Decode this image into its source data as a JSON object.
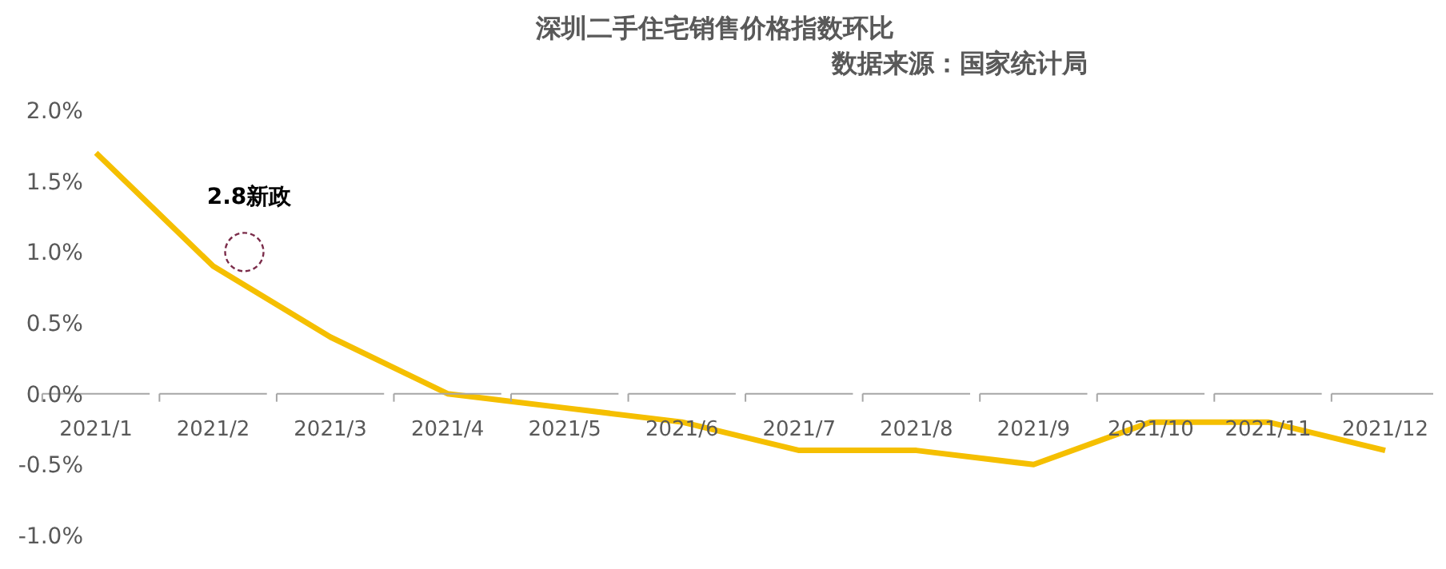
{
  "chart_data": {
    "type": "line",
    "title": "深圳二手住宅销售价格指数环比",
    "subtitle": "数据来源：国家统计局",
    "categories": [
      "2021/1",
      "2021/2",
      "2021/3",
      "2021/4",
      "2021/5",
      "2021/6",
      "2021/7",
      "2021/8",
      "2021/9",
      "2021/10",
      "2021/11",
      "2021/12"
    ],
    "series": [
      {
        "color": "#f5bf00",
        "values": [
          1.7,
          0.9,
          0.4,
          0.0,
          -0.1,
          -0.2,
          -0.4,
          -0.4,
          -0.5,
          -0.2,
          -0.2,
          -0.4
        ]
      }
    ],
    "ylim": [
      -1,
      2
    ],
    "yticks": [
      {
        "value": -1,
        "label": "-1.0%"
      },
      {
        "value": -0.5,
        "label": "-0.5%"
      },
      {
        "value": 0,
        "label": "0.0%"
      },
      {
        "value": 0.5,
        "label": "0.5%"
      },
      {
        "value": 1,
        "label": "1.0%"
      },
      {
        "value": 1.5,
        "label": "1.5%"
      },
      {
        "value": 2,
        "label": "2.0%"
      }
    ],
    "annotations": [
      {
        "text": "2.8新政",
        "x": "2021/2",
        "y": 1.0
      }
    ],
    "marker": "none",
    "line_style": "solid"
  }
}
